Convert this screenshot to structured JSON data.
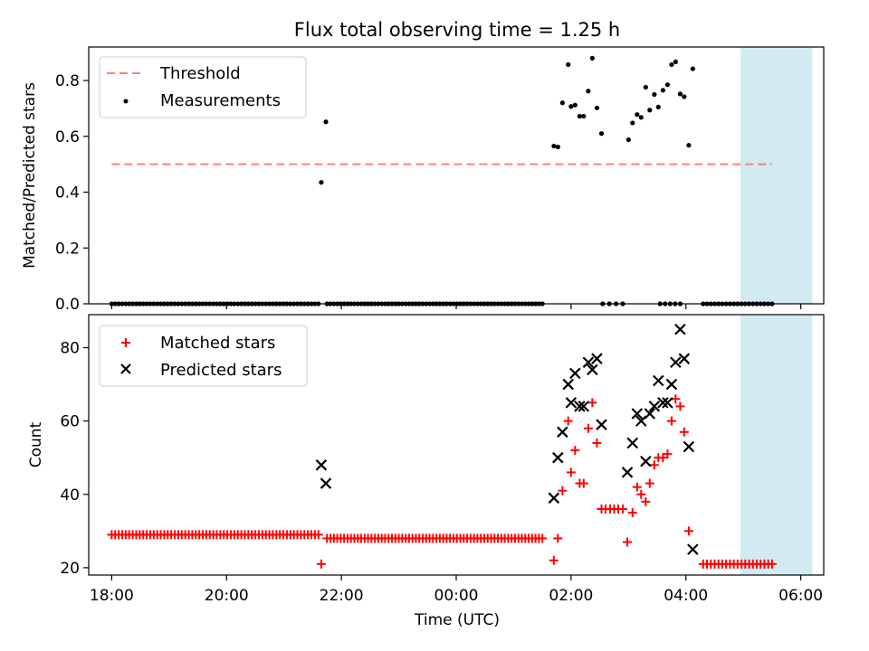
{
  "title": "Flux total observing time = 1.25 h",
  "colors": {
    "threshold": "#ff7f7f",
    "measurement": "#000000",
    "matched": "#ff0000",
    "predicted": "#000000",
    "shade": "#add8e6"
  },
  "chart_data": [
    {
      "type": "scatter",
      "ylabel": "Matched/Predicted stars",
      "ylim": [
        0,
        0.92
      ],
      "yticks": [
        0.0,
        0.2,
        0.4,
        0.6,
        0.8
      ],
      "ytick_labels": [
        "0.0",
        "0.2",
        "0.4",
        "0.6",
        "0.8"
      ],
      "legend": {
        "placement": "top-left",
        "entries": [
          "Threshold",
          "Measurements"
        ]
      },
      "threshold": {
        "name": "Threshold",
        "value": 0.5,
        "x_start": 18.0,
        "x_end": 29.5
      },
      "shaded_x": [
        28.95,
        30.2
      ],
      "series": [
        {
          "name": "Measurements",
          "segments": [
            {
              "x_start": 18.0,
              "x_end": 21.6,
              "count": 60,
              "value": 0.0
            },
            {
              "x_start": 21.75,
              "x_end": 25.5,
              "count": 64,
              "value": 0.0
            },
            {
              "x_start": 26.55,
              "x_end": 26.9,
              "count": 4,
              "value": 0.0
            },
            {
              "x_start": 27.55,
              "x_end": 27.9,
              "count": 5,
              "value": 0.0
            },
            {
              "x_start": 28.3,
              "x_end": 29.5,
              "count": 19,
              "value": 0.0
            }
          ],
          "points": [
            [
              21.65,
              0.435
            ],
            [
              21.73,
              0.652
            ],
            [
              25.7,
              0.565
            ],
            [
              25.77,
              0.562
            ],
            [
              25.85,
              0.72
            ],
            [
              25.95,
              0.857
            ],
            [
              26.0,
              0.707
            ],
            [
              26.07,
              0.712
            ],
            [
              26.15,
              0.672
            ],
            [
              26.22,
              0.672
            ],
            [
              26.3,
              0.762
            ],
            [
              26.37,
              0.88
            ],
            [
              26.45,
              0.702
            ],
            [
              26.53,
              0.61
            ],
            [
              27.0,
              0.588
            ],
            [
              27.07,
              0.648
            ],
            [
              27.15,
              0.678
            ],
            [
              27.22,
              0.668
            ],
            [
              27.3,
              0.776
            ],
            [
              27.37,
              0.694
            ],
            [
              27.45,
              0.75
            ],
            [
              27.52,
              0.705
            ],
            [
              27.6,
              0.765
            ],
            [
              27.68,
              0.785
            ],
            [
              27.75,
              0.857
            ],
            [
              27.82,
              0.867
            ],
            [
              27.9,
              0.752
            ],
            [
              27.97,
              0.742
            ],
            [
              28.05,
              0.568
            ],
            [
              28.12,
              0.842
            ]
          ]
        }
      ]
    },
    {
      "type": "scatter",
      "xlabel": "Time (UTC)",
      "ylabel": "Count",
      "ylim": [
        18,
        89
      ],
      "yticks": [
        20,
        40,
        60,
        80
      ],
      "ytick_labels": [
        "20",
        "40",
        "60",
        "80"
      ],
      "xlim": [
        17.6,
        30.4
      ],
      "xticks": [
        18,
        20,
        22,
        24,
        26,
        28,
        30
      ],
      "xtick_labels": [
        "18:00",
        "20:00",
        "22:00",
        "00:00",
        "02:00",
        "04:00",
        "06:00"
      ],
      "legend": {
        "placement": "top-left",
        "entries": [
          "Matched stars",
          "Predicted stars"
        ]
      },
      "shaded_x": [
        28.95,
        30.2
      ],
      "series": [
        {
          "name": "Matched stars",
          "segments": [
            {
              "x_start": 18.0,
              "x_end": 21.6,
              "count": 60,
              "value": 29
            },
            {
              "x_start": 21.75,
              "x_end": 25.5,
              "count": 64,
              "value": 28
            },
            {
              "x_start": 28.3,
              "x_end": 29.5,
              "count": 19,
              "value": 21
            }
          ],
          "points": [
            [
              21.65,
              21
            ],
            [
              25.7,
              22
            ],
            [
              25.77,
              28
            ],
            [
              25.85,
              41
            ],
            [
              25.95,
              60
            ],
            [
              26.0,
              46
            ],
            [
              26.07,
              52
            ],
            [
              26.15,
              43
            ],
            [
              26.22,
              43
            ],
            [
              26.3,
              58
            ],
            [
              26.37,
              65
            ],
            [
              26.45,
              54
            ],
            [
              26.53,
              36
            ],
            [
              26.6,
              36
            ],
            [
              26.68,
              36
            ],
            [
              26.75,
              36
            ],
            [
              26.82,
              36
            ],
            [
              26.9,
              36
            ],
            [
              26.98,
              27
            ],
            [
              27.07,
              35
            ],
            [
              27.15,
              42
            ],
            [
              27.22,
              40
            ],
            [
              27.3,
              38
            ],
            [
              27.37,
              43
            ],
            [
              27.45,
              48
            ],
            [
              27.52,
              50
            ],
            [
              27.6,
              50
            ],
            [
              27.68,
              51
            ],
            [
              27.75,
              60
            ],
            [
              27.82,
              66
            ],
            [
              27.9,
              64
            ],
            [
              27.97,
              57
            ],
            [
              28.05,
              30
            ]
          ]
        },
        {
          "name": "Predicted stars",
          "points": [
            [
              21.65,
              48
            ],
            [
              21.73,
              43
            ],
            [
              25.7,
              39
            ],
            [
              25.77,
              50
            ],
            [
              25.85,
              57
            ],
            [
              25.95,
              70
            ],
            [
              26.0,
              65
            ],
            [
              26.07,
              73
            ],
            [
              26.15,
              64
            ],
            [
              26.22,
              64
            ],
            [
              26.3,
              76
            ],
            [
              26.37,
              74
            ],
            [
              26.45,
              77
            ],
            [
              26.53,
              59
            ],
            [
              26.98,
              46
            ],
            [
              27.07,
              54
            ],
            [
              27.15,
              62
            ],
            [
              27.22,
              60
            ],
            [
              27.3,
              49
            ],
            [
              27.37,
              62
            ],
            [
              27.45,
              64
            ],
            [
              27.52,
              71
            ],
            [
              27.6,
              65
            ],
            [
              27.68,
              65
            ],
            [
              27.75,
              70
            ],
            [
              27.82,
              76
            ],
            [
              27.9,
              85
            ],
            [
              27.97,
              77
            ],
            [
              28.05,
              53
            ],
            [
              28.12,
              25
            ]
          ]
        }
      ]
    }
  ]
}
